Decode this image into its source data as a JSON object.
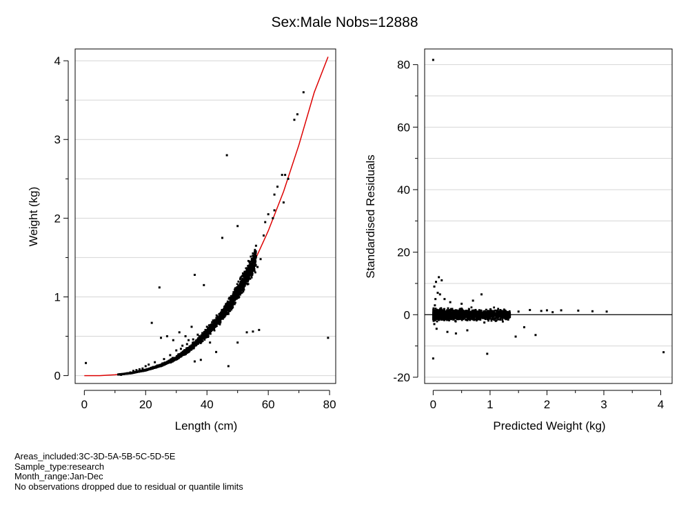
{
  "figure": {
    "title": "Sex:Male  Nobs=12888",
    "notes": [
      "Areas_included:3C-3D-5A-5B-5C-5D-5E",
      "Sample_type:research",
      "Month_range:Jan-Dec",
      "No observations dropped due to residual or quantile limits"
    ]
  },
  "chart_data": [
    {
      "type": "scatter",
      "title": "",
      "xlabel": "Length (cm)",
      "ylabel": "Weight (kg)",
      "xlim": [
        -3,
        82
      ],
      "ylim": [
        -0.1,
        4.15
      ],
      "xticks": [
        0,
        20,
        40,
        60,
        80
      ],
      "xminor": [
        10,
        30,
        50,
        70
      ],
      "yticks": [
        0,
        1,
        2,
        3,
        4
      ],
      "ygrid": [
        0,
        0.5,
        1,
        1.5,
        2,
        2.5,
        3,
        3.5,
        4
      ],
      "grid": "horizontal",
      "colors": {
        "points": "#000000",
        "fit": "#dd0000",
        "grid": "#d4d4d4"
      },
      "series": [
        {
          "kind": "points",
          "x": [
            0.5,
            79.5,
            46.5,
            71.5,
            69.5,
            68.5,
            65.5,
            64.5,
            66.5,
            61.5,
            58.5,
            62,
            56,
            50,
            45,
            24.5,
            22,
            36,
            39,
            47,
            50,
            57,
            55,
            65,
            63,
            62,
            60,
            59,
            36,
            38,
            43,
            53,
            35,
            33,
            41,
            25,
            27,
            31,
            29,
            20,
            18,
            17,
            19,
            16,
            15,
            14,
            13,
            12,
            21,
            23,
            26,
            28,
            30,
            32,
            34,
            37,
            40,
            42,
            44,
            46,
            48,
            49,
            51,
            52,
            54,
            47.5,
            44.5,
            42.5,
            40.5,
            38.5,
            45.5,
            43.5,
            41.5,
            39.5,
            37.5,
            48.5,
            50.5,
            52.5,
            53.5,
            55.5,
            56.5,
            57.5,
            35.5,
            33.5,
            31.5
          ],
          "y": [
            0.16,
            0.48,
            2.8,
            3.6,
            3.32,
            3.25,
            2.55,
            2.55,
            2.5,
            2.0,
            1.78,
            2.1,
            1.65,
            1.9,
            1.75,
            1.12,
            0.67,
            1.28,
            1.15,
            0.12,
            0.42,
            0.58,
            0.56,
            2.2,
            2.4,
            2.3,
            2.05,
            1.95,
            0.18,
            0.2,
            0.3,
            0.55,
            0.62,
            0.5,
            0.42,
            0.48,
            0.5,
            0.55,
            0.45,
            0.12,
            0.08,
            0.07,
            0.09,
            0.06,
            0.04,
            0.03,
            0.02,
            0.01,
            0.14,
            0.17,
            0.21,
            0.26,
            0.32,
            0.38,
            0.45,
            0.52,
            0.62,
            0.7,
            0.78,
            0.86,
            0.95,
            1.02,
            1.1,
            1.17,
            1.28,
            0.91,
            0.76,
            0.68,
            0.61,
            0.54,
            0.83,
            0.73,
            0.65,
            0.58,
            0.5,
            1.0,
            1.08,
            1.18,
            1.22,
            1.33,
            1.38,
            1.48,
            0.46,
            0.4,
            0.34
          ]
        },
        {
          "kind": "fit",
          "x": [
            0,
            5,
            10,
            15,
            20,
            25,
            30,
            35,
            40,
            45,
            50,
            55,
            60,
            65,
            70,
            75,
            79.5
          ],
          "y": [
            0,
            0,
            0.01,
            0.03,
            0.07,
            0.13,
            0.22,
            0.36,
            0.54,
            0.77,
            1.06,
            1.41,
            1.84,
            2.34,
            2.93,
            3.6,
            4.05
          ]
        }
      ]
    },
    {
      "type": "scatter",
      "title": "",
      "xlabel": "Predicted Weight (kg)",
      "ylabel": "Standardised Residuals",
      "xlim": [
        -0.15,
        4.2
      ],
      "ylim": [
        -22,
        85
      ],
      "xticks": [
        0,
        1,
        2,
        3,
        4
      ],
      "xminor": [
        0.5,
        1.5,
        2.5,
        3.5
      ],
      "yticks": [
        -20,
        0,
        20,
        40,
        60,
        80
      ],
      "ygrid": [
        -20,
        -10,
        0,
        10,
        20,
        30,
        40,
        50,
        60,
        70,
        80
      ],
      "grid": "horizontal",
      "zero_line": 0,
      "colors": {
        "points": "#000000",
        "zero": "#000000",
        "grid": "#d4d4d4"
      },
      "series": [
        {
          "kind": "points",
          "x": [
            0.0,
            0.02,
            0.05,
            0.1,
            0.15,
            0.08,
            0.12,
            0.04,
            0.0,
            0.95,
            1.8,
            1.45,
            4.05,
            0.85,
            0.7,
            0.5,
            0.3,
            0.2,
            0.6,
            0.02,
            0.9,
            1.1,
            1.3,
            1.5,
            1.7,
            1.9,
            2.1,
            2.25,
            2.55,
            2.8,
            3.05,
            2.0,
            1.6,
            0.4,
            0.25,
            0.06,
            0.03
          ],
          "y": [
            81.5,
            9,
            10.5,
            12,
            11,
            7,
            6.5,
            5,
            -14,
            -12.5,
            -6.5,
            -7,
            -12,
            6.5,
            4.5,
            3.5,
            4,
            5,
            -5,
            -3,
            -2.5,
            -2,
            -1,
            1,
            1.5,
            1.2,
            0.8,
            1.4,
            1.3,
            1.1,
            1.0,
            1.4,
            -4,
            -6,
            -5.5,
            -4.5,
            3
          ]
        }
      ]
    }
  ]
}
